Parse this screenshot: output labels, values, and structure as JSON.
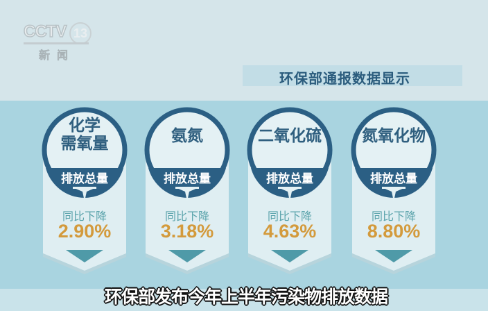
{
  "logo": {
    "brand": "CCTV",
    "channel": "13",
    "subtitle": "新闻"
  },
  "title": "环保部通报数据显示",
  "band_label": "排放总量",
  "change_label": "同比下降",
  "cards": [
    {
      "name_lines": [
        "化学",
        "需氧量"
      ],
      "value": "2.90%"
    },
    {
      "name_lines": [
        "氨氮"
      ],
      "value": "3.18%"
    },
    {
      "name_lines": [
        "二氧化硫"
      ],
      "value": "4.63%"
    },
    {
      "name_lines": [
        "氮氧化物"
      ],
      "value": "8.80%"
    }
  ],
  "caption": "环保部发布今年上半年污染物排放数据",
  "colors": {
    "ring": "#2b5f84",
    "card": "#dfeef2",
    "accent": "#d39a3c",
    "teal": "#5aa3ab",
    "background": "#a9d4e0"
  }
}
